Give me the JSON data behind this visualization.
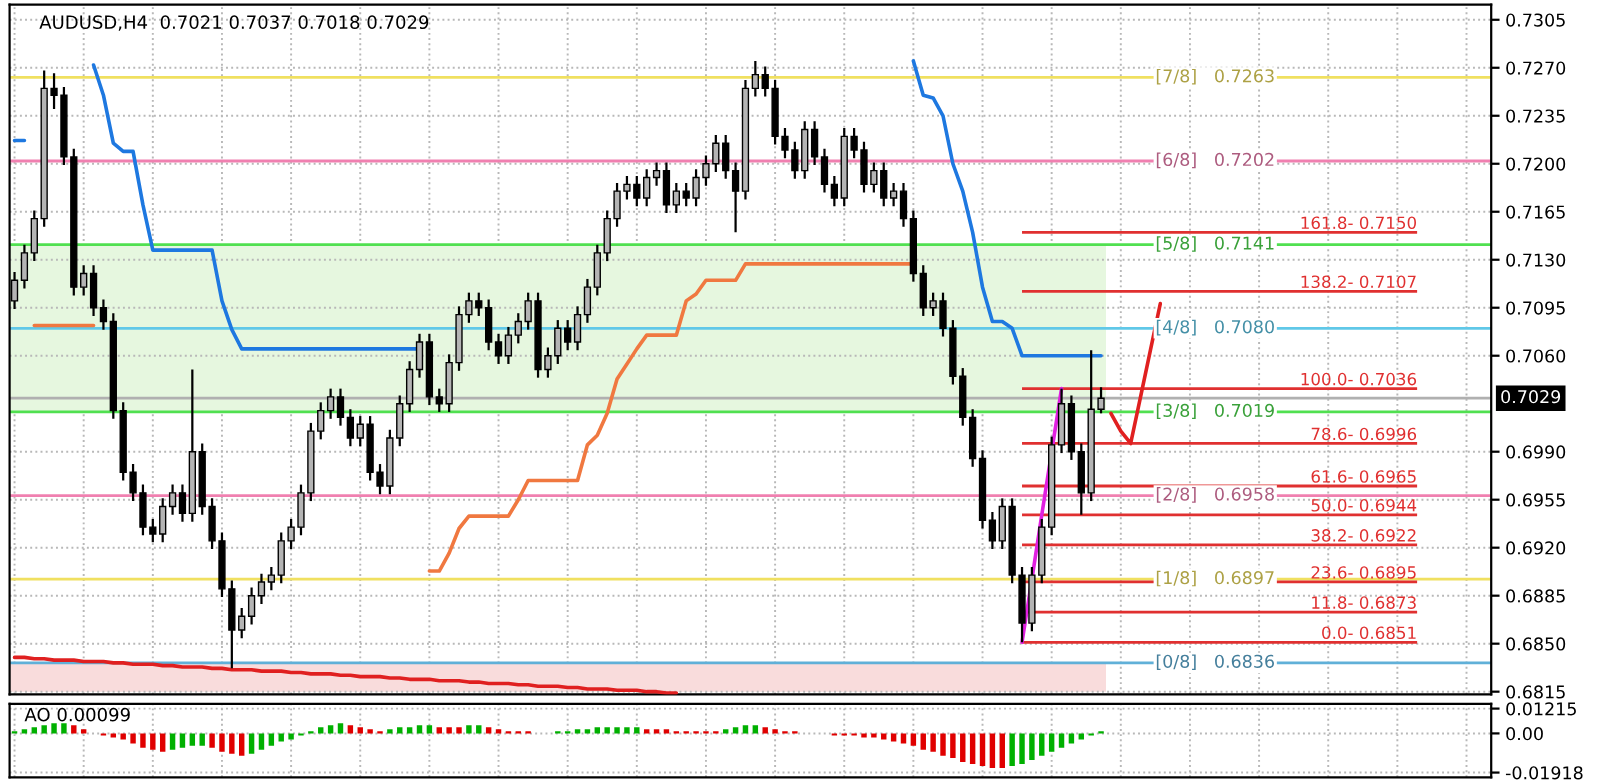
{
  "chart_data": [
    {
      "type": "candlestick",
      "title": "AUDUSD,H4  0.7021 0.7037 0.7018 0.7029",
      "categories": [
        null,
        null,
        null,
        null,
        null,
        null,
        null,
        null,
        null,
        null,
        null,
        null,
        null,
        null,
        null,
        null,
        null,
        null,
        null,
        null,
        null,
        null,
        null,
        null,
        null,
        null,
        null,
        null,
        null,
        null,
        null,
        null,
        null,
        null,
        null,
        null,
        null,
        null,
        null,
        null,
        null,
        null,
        null,
        null,
        null,
        null,
        null,
        null,
        null,
        null,
        null,
        null,
        null,
        null,
        null,
        null,
        null,
        null,
        null,
        null,
        null,
        null,
        null,
        null,
        null,
        null,
        null,
        null,
        null,
        null,
        null,
        null,
        null,
        null,
        null,
        null,
        null,
        null,
        null,
        null,
        null,
        null,
        null,
        null,
        null,
        null,
        null,
        null,
        null,
        null,
        null,
        null,
        null,
        null,
        null,
        null,
        null,
        null,
        null,
        null,
        null,
        null,
        null,
        null,
        null,
        null,
        null,
        null,
        null,
        null,
        null,
        null,
        null,
        null,
        null,
        null,
        null,
        null,
        null,
        null,
        null,
        null,
        null,
        null,
        null,
        null,
        null,
        null,
        null,
        null,
        null,
        null,
        null,
        null,
        null,
        null,
        null,
        null,
        null,
        null,
        null,
        null,
        null,
        null,
        null,
        null,
        null,
        null,
        null,
        null
      ],
      "ohlc": [
        [
          0.71,
          0.7121,
          0.7094,
          0.7115
        ],
        [
          0.7115,
          0.7141,
          0.7109,
          0.7135
        ],
        [
          0.7135,
          0.7166,
          0.7129,
          0.716
        ],
        [
          0.716,
          0.7268,
          0.7154,
          0.7255
        ],
        [
          0.7255,
          0.7266,
          0.724,
          0.725
        ],
        [
          0.725,
          0.7256,
          0.7199,
          0.7205
        ],
        [
          0.7205,
          0.7211,
          0.7104,
          0.711
        ],
        [
          0.711,
          0.7126,
          0.7104,
          0.712
        ],
        [
          0.712,
          0.7126,
          0.7089,
          0.7095
        ],
        [
          0.7095,
          0.7101,
          0.7079,
          0.7085
        ],
        [
          0.7085,
          0.7091,
          0.7014,
          0.702
        ],
        [
          0.702,
          0.7026,
          0.6969,
          0.6975
        ],
        [
          0.6975,
          0.6981,
          0.6954,
          0.696
        ],
        [
          0.696,
          0.6966,
          0.6929,
          0.6935
        ],
        [
          0.6935,
          0.6941,
          0.6924,
          0.693
        ],
        [
          0.693,
          0.6956,
          0.6924,
          0.695
        ],
        [
          0.695,
          0.6966,
          0.6944,
          0.696
        ],
        [
          0.696,
          0.6966,
          0.6939,
          0.6945
        ],
        [
          0.6945,
          0.705,
          0.6939,
          0.699
        ],
        [
          0.699,
          0.6996,
          0.6944,
          0.695
        ],
        [
          0.695,
          0.6956,
          0.6919,
          0.6925
        ],
        [
          0.6925,
          0.6931,
          0.6884,
          0.689
        ],
        [
          0.689,
          0.6896,
          0.6832,
          0.686
        ],
        [
          0.686,
          0.6876,
          0.6854,
          0.687
        ],
        [
          0.687,
          0.6891,
          0.6864,
          0.6885
        ],
        [
          0.6885,
          0.6901,
          0.6879,
          0.6895
        ],
        [
          0.6895,
          0.6906,
          0.6889,
          0.69
        ],
        [
          0.69,
          0.6931,
          0.6894,
          0.6925
        ],
        [
          0.6925,
          0.6941,
          0.6919,
          0.6935
        ],
        [
          0.6935,
          0.6966,
          0.6929,
          0.696
        ],
        [
          0.696,
          0.7011,
          0.6954,
          0.7005
        ],
        [
          0.7005,
          0.7026,
          0.6999,
          0.702
        ],
        [
          0.702,
          0.7036,
          0.7014,
          0.703
        ],
        [
          0.703,
          0.7036,
          0.7009,
          0.7015
        ],
        [
          0.7015,
          0.7021,
          0.6994,
          0.7
        ],
        [
          0.7,
          0.7016,
          0.6994,
          0.701
        ],
        [
          0.701,
          0.7016,
          0.6969,
          0.6975
        ],
        [
          0.6975,
          0.6981,
          0.6959,
          0.6965
        ],
        [
          0.6965,
          0.7006,
          0.6959,
          0.7
        ],
        [
          0.7,
          0.7031,
          0.6994,
          0.7025
        ],
        [
          0.7025,
          0.7056,
          0.7019,
          0.705
        ],
        [
          0.705,
          0.7076,
          0.7044,
          0.707
        ],
        [
          0.707,
          0.7076,
          0.7024,
          0.703
        ],
        [
          0.703,
          0.7036,
          0.7019,
          0.7025
        ],
        [
          0.7025,
          0.7061,
          0.7019,
          0.7055
        ],
        [
          0.7055,
          0.7096,
          0.7049,
          0.709
        ],
        [
          0.709,
          0.7106,
          0.7084,
          0.71
        ],
        [
          0.71,
          0.7106,
          0.7089,
          0.7095
        ],
        [
          0.7095,
          0.7101,
          0.7064,
          0.707
        ],
        [
          0.707,
          0.7076,
          0.7054,
          0.706
        ],
        [
          0.706,
          0.7081,
          0.7054,
          0.7075
        ],
        [
          0.7075,
          0.7091,
          0.7069,
          0.7085
        ],
        [
          0.7085,
          0.7106,
          0.7079,
          0.71
        ],
        [
          0.71,
          0.7106,
          0.7044,
          0.705
        ],
        [
          0.705,
          0.7066,
          0.7044,
          0.706
        ],
        [
          0.706,
          0.7086,
          0.7054,
          0.708
        ],
        [
          0.708,
          0.7086,
          0.7064,
          0.707
        ],
        [
          0.707,
          0.7096,
          0.7064,
          0.709
        ],
        [
          0.709,
          0.7116,
          0.7084,
          0.711
        ],
        [
          0.711,
          0.7141,
          0.7104,
          0.7135
        ],
        [
          0.7135,
          0.7166,
          0.7129,
          0.716
        ],
        [
          0.716,
          0.7186,
          0.7154,
          0.718
        ],
        [
          0.718,
          0.7191,
          0.7174,
          0.7185
        ],
        [
          0.7185,
          0.7191,
          0.7169,
          0.7175
        ],
        [
          0.7175,
          0.7196,
          0.7169,
          0.719
        ],
        [
          0.719,
          0.7201,
          0.7184,
          0.7195
        ],
        [
          0.7195,
          0.7201,
          0.7164,
          0.717
        ],
        [
          0.717,
          0.7186,
          0.7164,
          0.718
        ],
        [
          0.718,
          0.7186,
          0.7169,
          0.7175
        ],
        [
          0.7175,
          0.7196,
          0.7169,
          0.719
        ],
        [
          0.719,
          0.7206,
          0.7184,
          0.72
        ],
        [
          0.72,
          0.7221,
          0.7194,
          0.7215
        ],
        [
          0.7215,
          0.7221,
          0.7189,
          0.7195
        ],
        [
          0.7195,
          0.7201,
          0.715,
          0.718
        ],
        [
          0.718,
          0.7261,
          0.7174,
          0.7255
        ],
        [
          0.7255,
          0.7275,
          0.7249,
          0.7265
        ],
        [
          0.7265,
          0.7271,
          0.7249,
          0.7255
        ],
        [
          0.7255,
          0.7261,
          0.7214,
          0.722
        ],
        [
          0.722,
          0.7226,
          0.7204,
          0.721
        ],
        [
          0.721,
          0.7216,
          0.7189,
          0.7195
        ],
        [
          0.7195,
          0.7231,
          0.7189,
          0.7225
        ],
        [
          0.7225,
          0.7231,
          0.7199,
          0.7205
        ],
        [
          0.7205,
          0.7211,
          0.7179,
          0.7185
        ],
        [
          0.7185,
          0.7191,
          0.7169,
          0.7175
        ],
        [
          0.7175,
          0.7226,
          0.7169,
          0.722
        ],
        [
          0.722,
          0.7226,
          0.7204,
          0.721
        ],
        [
          0.721,
          0.7216,
          0.7179,
          0.7185
        ],
        [
          0.7185,
          0.7201,
          0.7179,
          0.7195
        ],
        [
          0.7195,
          0.7201,
          0.7169,
          0.7175
        ],
        [
          0.7175,
          0.7186,
          0.7169,
          0.718
        ],
        [
          0.718,
          0.7186,
          0.7154,
          0.716
        ],
        [
          0.716,
          0.7166,
          0.7114,
          0.712
        ],
        [
          0.712,
          0.7126,
          0.7089,
          0.7095
        ],
        [
          0.7095,
          0.7106,
          0.7089,
          0.71
        ],
        [
          0.71,
          0.7106,
          0.7074,
          0.708
        ],
        [
          0.708,
          0.7086,
          0.7039,
          0.7045
        ],
        [
          0.7045,
          0.7051,
          0.7009,
          0.7015
        ],
        [
          0.7015,
          0.7021,
          0.6979,
          0.6985
        ],
        [
          0.6985,
          0.6991,
          0.6934,
          0.694
        ],
        [
          0.694,
          0.6946,
          0.6919,
          0.6925
        ],
        [
          0.6925,
          0.6956,
          0.6919,
          0.695
        ],
        [
          0.695,
          0.6956,
          0.6894,
          0.69
        ],
        [
          0.69,
          0.6906,
          0.6851,
          0.6865
        ],
        [
          0.6865,
          0.6906,
          0.6859,
          0.69
        ],
        [
          0.69,
          0.6941,
          0.6894,
          0.6935
        ],
        [
          0.6935,
          0.7001,
          0.6929,
          0.6995
        ],
        [
          0.6995,
          0.7036,
          0.6989,
          0.7025
        ],
        [
          0.7025,
          0.7031,
          0.6984,
          0.699
        ],
        [
          0.699,
          0.6996,
          0.6944,
          0.696
        ],
        [
          0.696,
          0.7064,
          0.6954,
          0.7021
        ],
        [
          0.7021,
          0.7037,
          0.7018,
          0.7029
        ],
        null,
        null,
        null,
        null,
        null,
        null,
        null,
        null,
        null,
        null,
        null,
        null,
        null,
        null,
        null,
        null,
        null,
        null,
        null,
        null,
        null,
        null,
        null,
        null,
        null,
        null,
        null,
        null,
        null,
        null,
        null,
        null,
        null,
        null,
        null,
        null,
        null,
        null,
        null
      ],
      "series": [
        {
          "type": "line",
          "color": "#1e78e0",
          "values": [
            0.7217,
            0.7217,
            null,
            null,
            null,
            null,
            null,
            null,
            0.7272,
            0.725,
            0.7215,
            0.7209,
            0.7209,
            0.717,
            0.7137,
            0.7137,
            0.7137,
            0.7137,
            0.7137,
            0.7137,
            0.7137,
            0.71,
            0.7079,
            0.7065,
            0.7065,
            0.7065,
            0.7065,
            0.7065,
            0.7065,
            0.7065,
            0.7065,
            0.7065,
            0.7065,
            0.7065,
            0.7065,
            0.7065,
            0.7065,
            0.7065,
            0.7065,
            0.7065,
            0.7065,
            0.7065,
            null,
            null,
            null,
            null,
            null,
            null,
            null,
            null,
            null,
            null,
            null,
            null,
            null,
            null,
            null,
            null,
            null,
            null,
            null,
            null,
            null,
            null,
            null,
            null,
            null,
            null,
            null,
            null,
            null,
            null,
            null,
            null,
            null,
            null,
            null,
            null,
            null,
            null,
            null,
            null,
            null,
            null,
            null,
            null,
            null,
            null,
            null,
            null,
            null,
            0.7275,
            0.725,
            0.7248,
            0.7235,
            0.72,
            0.718,
            0.715,
            0.711,
            0.7085,
            0.7085,
            0.708,
            0.706,
            0.706,
            0.706,
            0.706,
            0.706,
            0.706,
            0.706,
            0.706,
            0.706,
            null,
            null,
            null,
            null,
            null,
            null,
            null,
            null,
            null,
            null,
            null,
            null,
            null,
            null,
            null,
            null,
            null,
            null,
            null,
            null,
            null,
            null,
            null,
            null,
            null,
            null,
            null,
            null,
            null,
            null,
            null,
            null,
            null,
            null,
            null,
            null,
            null,
            null,
            null
          ]
        },
        {
          "type": "line",
          "color": "#f07840",
          "values": [
            null,
            null,
            0.7082,
            0.7082,
            0.7082,
            0.7082,
            0.7082,
            0.7082,
            0.7082,
            null,
            null,
            null,
            null,
            null,
            null,
            null,
            null,
            null,
            null,
            null,
            null,
            null,
            null,
            null,
            null,
            null,
            null,
            null,
            null,
            null,
            null,
            null,
            null,
            null,
            null,
            null,
            null,
            null,
            null,
            null,
            null,
            null,
            0.6903,
            0.6903,
            0.6916,
            0.6934,
            0.6943,
            0.6943,
            0.6943,
            0.6943,
            0.6943,
            0.6955,
            0.6969,
            0.6969,
            0.6969,
            0.6969,
            0.6969,
            0.6969,
            0.6995,
            0.7002,
            0.7018,
            0.7043,
            0.7054,
            0.7065,
            0.7075,
            0.7075,
            0.7075,
            0.7075,
            0.71,
            0.7105,
            0.7115,
            0.7115,
            0.7115,
            0.7115,
            0.7127,
            0.7127,
            0.7127,
            0.7127,
            0.7127,
            0.7127,
            0.7127,
            0.7127,
            0.7127,
            0.7127,
            0.7127,
            0.7127,
            0.7127,
            0.7127,
            0.7127,
            0.7127,
            0.7127,
            0.7127,
            null,
            null,
            null,
            null,
            null,
            null,
            null,
            null,
            null,
            null,
            null,
            null,
            null,
            null,
            null,
            null,
            null,
            null,
            null,
            null,
            null,
            null,
            null,
            null,
            null,
            null,
            null,
            null,
            null,
            null,
            null,
            null,
            null,
            null,
            null,
            null,
            null,
            null,
            null,
            null,
            null,
            null,
            null,
            null,
            null,
            null,
            null,
            null,
            null,
            null,
            null,
            null,
            null,
            null,
            null,
            null,
            null,
            null
          ]
        },
        {
          "type": "line",
          "color": "#e02020",
          "values": [
            0.684,
            0.684,
            0.6839,
            0.6839,
            0.6838,
            0.6838,
            0.6838,
            0.6837,
            0.6837,
            0.6837,
            0.6836,
            0.6836,
            0.6835,
            0.6835,
            0.6835,
            0.6834,
            0.6834,
            0.6833,
            0.6833,
            0.6833,
            0.6832,
            0.6832,
            0.6831,
            0.6831,
            0.6831,
            0.683,
            0.683,
            0.683,
            0.6829,
            0.6829,
            0.6828,
            0.6828,
            0.6828,
            0.6827,
            0.6827,
            0.6826,
            0.6826,
            0.6826,
            0.6825,
            0.6825,
            0.6824,
            0.6824,
            0.6824,
            0.6823,
            0.6823,
            0.6823,
            0.6822,
            0.6822,
            0.6821,
            0.6821,
            0.6821,
            0.682,
            0.682,
            0.6819,
            0.6819,
            0.6819,
            0.6818,
            0.6818,
            0.6817,
            0.6817,
            0.6817,
            0.6816,
            0.6816,
            0.6816,
            0.6815,
            0.6815,
            0.6814,
            0.6814,
            null,
            null,
            null,
            null,
            null,
            null,
            null,
            null,
            null,
            null,
            null,
            null,
            null,
            null,
            null,
            null,
            null,
            null,
            null,
            null,
            null,
            null,
            null,
            null,
            null,
            null,
            null,
            null,
            null,
            null,
            null,
            null,
            null,
            null,
            null,
            null,
            null,
            null,
            null,
            null,
            null,
            null,
            null,
            null,
            null,
            null,
            null,
            null,
            null,
            null,
            null,
            null,
            null,
            null,
            null,
            null,
            null,
            null,
            null,
            null,
            null,
            null,
            null,
            null,
            null,
            null,
            null,
            null,
            null,
            null,
            null,
            null,
            null,
            null,
            null,
            null,
            null,
            null,
            null,
            null,
            null,
            null
          ]
        },
        {
          "type": "line",
          "color": "#e020e0",
          "values": [
            null,
            null,
            null,
            null,
            null,
            null,
            null,
            null,
            null,
            null,
            null,
            null,
            null,
            null,
            null,
            null,
            null,
            null,
            null,
            null,
            null,
            null,
            null,
            null,
            null,
            null,
            null,
            null,
            null,
            null,
            null,
            null,
            null,
            null,
            null,
            null,
            null,
            null,
            null,
            null,
            null,
            null,
            null,
            null,
            null,
            null,
            null,
            null,
            null,
            null,
            null,
            null,
            null,
            null,
            null,
            null,
            null,
            null,
            null,
            null,
            null,
            null,
            null,
            null,
            null,
            null,
            null,
            null,
            null,
            null,
            null,
            null,
            null,
            null,
            null,
            null,
            null,
            null,
            null,
            null,
            null,
            null,
            null,
            null,
            null,
            null,
            null,
            null,
            null,
            null,
            null,
            null,
            null,
            null,
            null,
            null,
            null,
            null,
            null,
            null,
            null,
            null,
            0.6851,
            0.6897,
            0.6944,
            0.699,
            0.7036,
            null,
            null,
            null,
            null,
            null,
            null,
            null,
            null,
            null,
            null,
            null,
            null,
            null,
            null,
            null,
            null,
            null,
            null,
            null,
            null,
            null,
            null,
            null,
            null,
            null,
            null,
            null,
            null,
            null,
            null,
            null,
            null,
            null,
            null,
            null,
            null,
            null,
            null,
            null,
            null,
            null,
            null,
            null
          ]
        },
        {
          "type": "line",
          "color": "#e02020",
          "values": [
            null,
            null,
            null,
            null,
            null,
            null,
            null,
            null,
            null,
            null,
            null,
            null,
            null,
            null,
            null,
            null,
            null,
            null,
            null,
            null,
            null,
            null,
            null,
            null,
            null,
            null,
            null,
            null,
            null,
            null,
            null,
            null,
            null,
            null,
            null,
            null,
            null,
            null,
            null,
            null,
            null,
            null,
            null,
            null,
            null,
            null,
            null,
            null,
            null,
            null,
            null,
            null,
            null,
            null,
            null,
            null,
            null,
            null,
            null,
            null,
            null,
            null,
            null,
            null,
            null,
            null,
            null,
            null,
            null,
            null,
            null,
            null,
            null,
            null,
            null,
            null,
            null,
            null,
            null,
            null,
            null,
            null,
            null,
            null,
            null,
            null,
            null,
            null,
            null,
            null,
            null,
            null,
            null,
            null,
            null,
            null,
            null,
            null,
            null,
            null,
            null,
            null,
            null,
            null,
            null,
            null,
            null,
            null,
            null,
            null,
            null,
            0.7018,
            0.7005,
            0.6996,
            0.703,
            0.7064,
            0.7098,
            null,
            null,
            null,
            null,
            null,
            null,
            null,
            null,
            null,
            null,
            null,
            null,
            null,
            null,
            null,
            null,
            null,
            null,
            null,
            null,
            null,
            null,
            null,
            null,
            null,
            null,
            null,
            null,
            null,
            null,
            null,
            null,
            null
          ]
        }
      ],
      "bands": [
        {
          "axis": "y",
          "from": 0.7019,
          "to": 0.7141,
          "color": "#e6f7df"
        },
        {
          "axis": "y",
          "from": 0.6815,
          "to": 0.6836,
          "color": "#f9dcdc"
        }
      ],
      "ref_lines": [
        {
          "axis": "y",
          "value": 0.7263,
          "label": "[7/8]   0.7263",
          "color": "#f0e060"
        },
        {
          "axis": "y",
          "value": 0.7202,
          "label": "[6/8]   0.7202",
          "color": "#f080b0"
        },
        {
          "axis": "y",
          "value": 0.7141,
          "label": "[5/8]   0.7141",
          "color": "#50e050"
        },
        {
          "axis": "y",
          "value": 0.708,
          "label": "[4/8]   0.7080",
          "color": "#60c8e8"
        },
        {
          "axis": "y",
          "value": 0.7019,
          "label": "[3/8]   0.7019",
          "color": "#50e050"
        },
        {
          "axis": "y",
          "value": 0.6958,
          "label": "[2/8]   0.6958",
          "color": "#f080b0"
        },
        {
          "axis": "y",
          "value": 0.6897,
          "label": "[1/8]   0.6897",
          "color": "#f0e060"
        },
        {
          "axis": "y",
          "value": 0.6836,
          "label": "[0/8]   0.6836",
          "color": "#60b0d8"
        },
        {
          "axis": "y",
          "value": 0.7029,
          "label": "0.7029",
          "color": "#b0b0b0"
        },
        {
          "axis": "y",
          "value": 0.715,
          "color": "#e03030"
        },
        {
          "axis": "y",
          "value": 0.7107,
          "color": "#e03030"
        },
        {
          "axis": "y",
          "value": 0.7036,
          "color": "#e03030"
        },
        {
          "axis": "y",
          "value": 0.6996,
          "color": "#e03030"
        },
        {
          "axis": "y",
          "value": 0.6965,
          "color": "#e03030"
        },
        {
          "axis": "y",
          "value": 0.6944,
          "color": "#e03030"
        },
        {
          "axis": "y",
          "value": 0.6922,
          "color": "#e03030"
        },
        {
          "axis": "y",
          "value": 0.6895,
          "color": "#e03030"
        },
        {
          "axis": "y",
          "value": 0.6873,
          "color": "#e03030"
        },
        {
          "axis": "y",
          "value": 0.6851,
          "color": "#e03030"
        }
      ],
      "annotations": [
        {
          "text": "161.8- 0.7150",
          "y": 0.715
        },
        {
          "text": "138.2- 0.7107",
          "y": 0.7107
        },
        {
          "text": "100.0- 0.7036",
          "y": 0.7036
        },
        {
          "text": "78.6- 0.6996",
          "y": 0.6996
        },
        {
          "text": "61.6- 0.6965",
          "y": 0.6965
        },
        {
          "text": "50.0- 0.6944",
          "y": 0.6944
        },
        {
          "text": "38.2- 0.6922",
          "y": 0.6922
        },
        {
          "text": "23.6- 0.6895",
          "y": 0.6895
        },
        {
          "text": "11.8- 0.6873",
          "y": 0.6873
        },
        {
          "text": "0.0- 0.6851",
          "y": 0.6851
        }
      ],
      "ylim": [
        0.6813,
        0.7316
      ],
      "yticks": [
        0.7305,
        {
          "value": 0.727,
          "label": "0.7270"
        },
        0.7235,
        {
          "value": 0.72,
          "label": "0.7200"
        },
        0.7165,
        {
          "value": 0.713,
          "label": "0.7130"
        },
        0.7095,
        {
          "value": 0.706,
          "label": "0.7060"
        },
        {
          "value": 0.699,
          "label": "0.6990"
        },
        0.6955,
        {
          "value": 0.692,
          "label": "0.6920"
        },
        0.6885,
        {
          "value": 0.685,
          "label": "0.6850"
        },
        0.6815
      ],
      "grid": true
    },
    {
      "type": "bar",
      "categories": [
        null,
        null,
        null,
        null,
        null,
        null,
        null,
        null,
        null,
        null,
        null,
        null,
        null,
        null,
        null,
        null,
        null,
        null,
        null,
        null,
        null,
        null,
        null,
        null,
        null,
        null,
        null,
        null,
        null,
        null,
        null,
        null,
        null,
        null,
        null,
        null,
        null,
        null,
        null,
        null,
        null,
        null,
        null,
        null,
        null,
        null,
        null,
        null,
        null,
        null,
        null,
        null,
        null,
        null,
        null,
        null,
        null,
        null,
        null,
        null,
        null,
        null,
        null,
        null,
        null,
        null,
        null,
        null,
        null,
        null,
        null,
        null,
        null,
        null,
        null,
        null,
        null,
        null,
        null,
        null,
        null,
        null,
        null,
        null,
        null,
        null,
        null,
        null,
        null,
        null,
        null,
        null,
        null,
        null,
        null,
        null,
        null,
        null,
        null,
        null,
        null,
        null,
        null,
        null,
        null,
        null,
        null,
        null,
        null,
        null,
        null,
        null,
        null,
        null,
        null,
        null,
        null,
        null,
        null,
        null,
        null,
        null,
        null,
        null,
        null,
        null,
        null,
        null,
        null,
        null,
        null,
        null,
        null,
        null,
        null,
        null,
        null,
        null,
        null,
        null,
        null,
        null,
        null,
        null,
        null,
        null,
        null,
        null,
        null,
        null
      ],
      "values": [
        0.001,
        0.002,
        0.003,
        0.004,
        0.005,
        0.005,
        0.004,
        0.002,
        0.0,
        -0.001,
        -0.002,
        -0.003,
        -0.005,
        -0.007,
        -0.008,
        -0.009,
        -0.008,
        -0.007,
        -0.006,
        -0.006,
        -0.007,
        -0.009,
        -0.01,
        -0.011,
        -0.01,
        -0.008,
        -0.006,
        -0.004,
        -0.003,
        -0.001,
        0.001,
        0.003,
        0.004,
        0.005,
        0.004,
        0.003,
        0.002,
        0.001,
        0.002,
        0.003,
        0.003,
        0.004,
        0.004,
        0.003,
        0.003,
        0.003,
        0.004,
        0.004,
        0.003,
        0.002,
        0.001,
        0.001,
        0.001,
        0.0,
        0.0,
        0.001,
        0.001,
        0.002,
        0.002,
        0.003,
        0.003,
        0.003,
        0.003,
        0.003,
        0.002,
        0.002,
        0.002,
        0.001,
        0.001,
        0.001,
        0.001,
        0.001,
        0.002,
        0.003,
        0.004,
        0.004,
        0.003,
        0.002,
        0.001,
        0.001,
        0.0,
        0.0,
        0.0,
        -0.001,
        -0.001,
        -0.001,
        -0.002,
        -0.002,
        -0.003,
        -0.004,
        -0.005,
        -0.006,
        -0.008,
        -0.009,
        -0.011,
        -0.012,
        -0.014,
        -0.015,
        -0.016,
        -0.017,
        -0.017,
        -0.016,
        -0.015,
        -0.013,
        -0.011,
        -0.009,
        -0.007,
        -0.005,
        -0.003,
        -0.001,
        0.001,
        null,
        null,
        null,
        null,
        null,
        null,
        null,
        null,
        null,
        null,
        null,
        null,
        null,
        null,
        null,
        null,
        null,
        null,
        null,
        null,
        null,
        null,
        null,
        null,
        null,
        null,
        null,
        null,
        null,
        null,
        null,
        null,
        null,
        null,
        null,
        null,
        null,
        null,
        null
      ],
      "colors": [
        "#00b000",
        "#00b000",
        "#00b000",
        "#00b000",
        "#00b000",
        "#00b000",
        "#e00000",
        "#e00000",
        "#e00000",
        "#e00000",
        "#e00000",
        "#e00000",
        "#e00000",
        "#e00000",
        "#e00000",
        "#e00000",
        "#00b000",
        "#00b000",
        "#00b000",
        "#00b000",
        "#e00000",
        "#e00000",
        "#e00000",
        "#e00000",
        "#00b000",
        "#00b000",
        "#00b000",
        "#00b000",
        "#00b000",
        "#00b000",
        "#00b000",
        "#00b000",
        "#00b000",
        "#00b000",
        "#e00000",
        "#e00000",
        "#e00000",
        "#e00000",
        "#00b000",
        "#00b000",
        "#00b000",
        "#00b000",
        "#00b000",
        "#e00000",
        "#e00000",
        "#e00000",
        "#00b000",
        "#00b000",
        "#e00000",
        "#e00000",
        "#e00000",
        "#e00000",
        "#e00000",
        "#e00000",
        "#e00000",
        "#00b000",
        "#00b000",
        "#00b000",
        "#00b000",
        "#00b000",
        "#00b000",
        "#00b000",
        "#00b000",
        "#00b000",
        "#e00000",
        "#e00000",
        "#e00000",
        "#e00000",
        "#e00000",
        "#e00000",
        "#e00000",
        "#e00000",
        "#00b000",
        "#00b000",
        "#00b000",
        "#00b000",
        "#e00000",
        "#e00000",
        "#e00000",
        "#e00000",
        "#e00000",
        "#e00000",
        "#e00000",
        "#e00000",
        "#e00000",
        "#e00000",
        "#e00000",
        "#e00000",
        "#e00000",
        "#e00000",
        "#e00000",
        "#e00000",
        "#e00000",
        "#e00000",
        "#e00000",
        "#e00000",
        "#e00000",
        "#e00000",
        "#e00000",
        "#e00000",
        "#e00000",
        "#00b000",
        "#00b000",
        "#00b000",
        "#00b000",
        "#00b000",
        "#00b000",
        "#00b000",
        "#00b000",
        "#00b000",
        "#00b000",
        null,
        null,
        null,
        null,
        null,
        null,
        null,
        null,
        null,
        null,
        null,
        null,
        null,
        null,
        null,
        null,
        null,
        null,
        null,
        null,
        null,
        null,
        null,
        null,
        null,
        null,
        null,
        null,
        null,
        null,
        null,
        null,
        null,
        null,
        null,
        null,
        null,
        null,
        null
      ],
      "annotations": [
        "AO 0.00099"
      ],
      "ylim": [
        -0.0215,
        0.0145
      ],
      "yticks": [
        0.01215,
        {
          "value": 0,
          "label": "0.00"
        },
        -0.01918
      ],
      "grid": true
    }
  ]
}
